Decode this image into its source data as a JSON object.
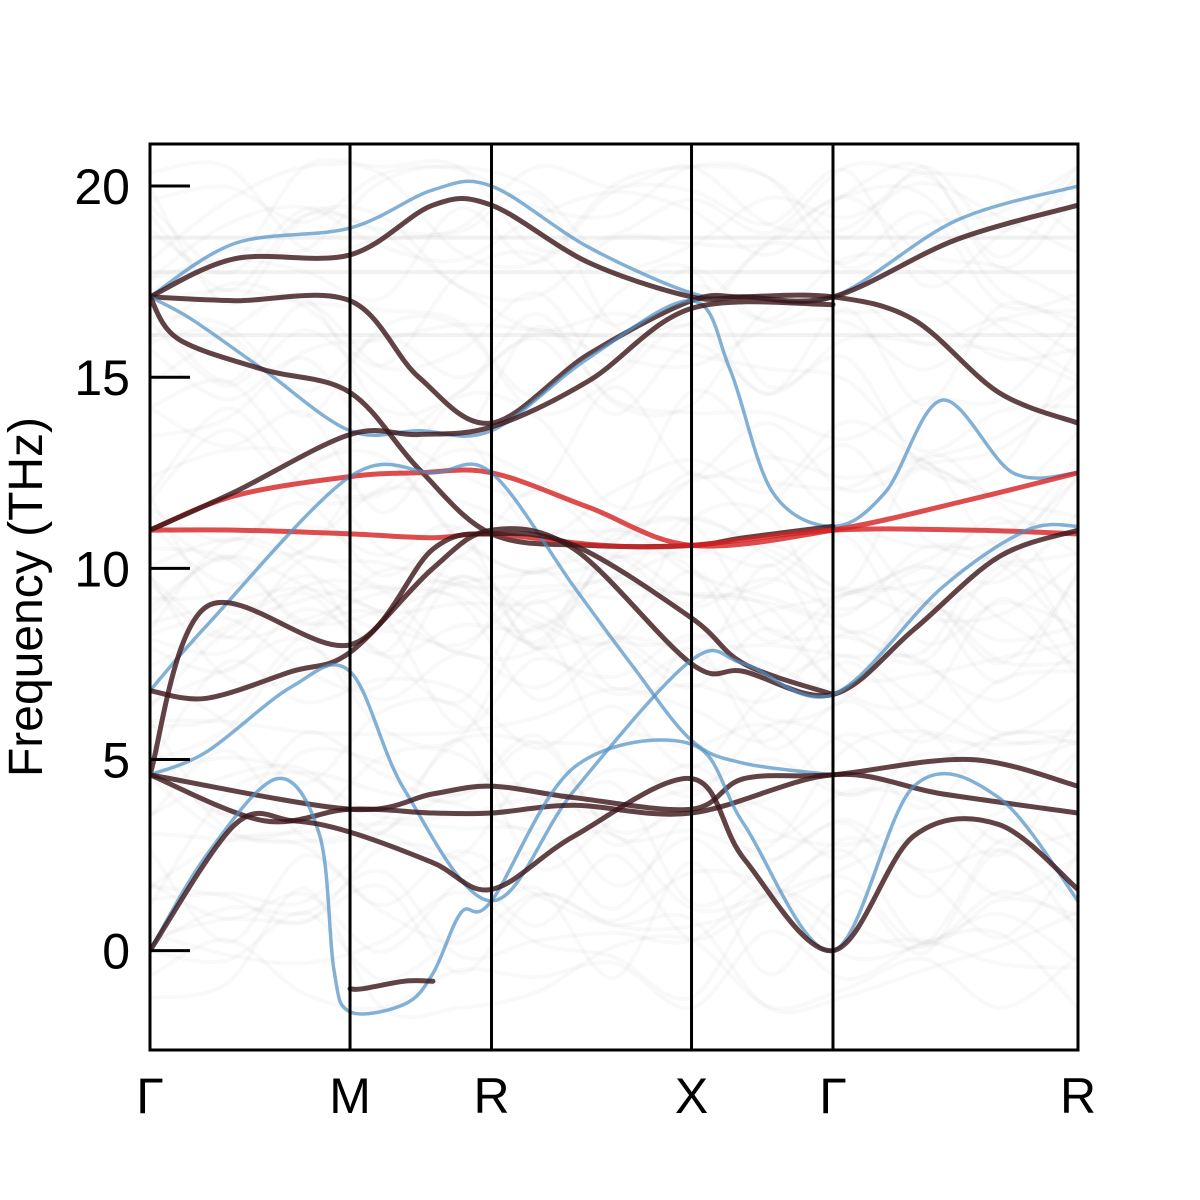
{
  "chart_data": {
    "type": "line",
    "title": "",
    "xlabel": "",
    "ylabel": "Frequency (THz)",
    "ylim": [
      -2.6,
      21.1
    ],
    "yticks": [
      0,
      5,
      10,
      15,
      20
    ],
    "ytick_labels": [
      "0",
      "5",
      "10",
      "15",
      "20"
    ],
    "kpath_positions": [
      0,
      0.707,
      1.207,
      1.914,
      2.414,
      3.28
    ],
    "kpath_labels": [
      "Γ",
      "M",
      "R",
      "X",
      "Γ",
      "R"
    ],
    "grid": false,
    "colors": {
      "reference": "#4f90c4",
      "unfolded_dark": "#3a1418",
      "unfolded_red": "#d42020",
      "background": "#b0b0b0"
    },
    "series": [
      {
        "color": "#4f90c4",
        "role": "reference",
        "x": [
          0,
          0.3,
          0.707,
          1.0,
          1.207,
          1.55,
          1.914,
          2.1,
          2.414,
          2.85,
          3.28
        ],
        "y": [
          17.1,
          18.5,
          18.9,
          19.9,
          20.0,
          18.4,
          17.2,
          17.1,
          17.1,
          19.1,
          20.0
        ]
      },
      {
        "color": "#3a1418",
        "role": "unfolded",
        "x": [
          0,
          0.3,
          0.707,
          1.0,
          1.207,
          1.55,
          1.914,
          2.1,
          2.414,
          2.85,
          3.28
        ],
        "y": [
          17.1,
          18.1,
          18.2,
          19.5,
          19.5,
          18.0,
          17.1,
          17.1,
          17.1,
          18.6,
          19.5
        ]
      },
      {
        "color": "#3a1418",
        "role": "unfolded",
        "x": [
          0,
          0.3,
          0.707,
          0.95,
          1.207,
          1.55,
          1.914,
          2.1,
          2.414,
          2.7,
          3.0,
          3.28
        ],
        "y": [
          17.1,
          17.0,
          17.0,
          15.0,
          13.8,
          15.6,
          17.0,
          17.1,
          17.1,
          16.5,
          14.6,
          13.8
        ]
      },
      {
        "color": "#4f90c4",
        "role": "reference",
        "x": [
          0,
          0.15,
          0.4,
          0.707,
          0.95,
          1.207,
          1.55,
          1.914,
          2.05,
          2.2,
          2.414,
          2.6,
          2.8,
          3.05,
          3.28
        ],
        "y": [
          17.1,
          16.5,
          15.2,
          13.6,
          13.6,
          13.6,
          15.5,
          17.0,
          15.2,
          12.0,
          11.1,
          12.0,
          14.4,
          12.5,
          12.5
        ]
      },
      {
        "color": "#3a1418",
        "role": "unfolded",
        "x": [
          0,
          0.1,
          0.4,
          0.707,
          0.95,
          1.207,
          1.55,
          1.914,
          2.1,
          2.414
        ],
        "y": [
          17.1,
          16.0,
          15.2,
          14.6,
          12.6,
          10.9,
          10.6,
          10.6,
          10.8,
          11.1
        ]
      },
      {
        "color": "#d42020",
        "role": "unfolded",
        "x": [
          0,
          0.3,
          0.707,
          1.0,
          1.207,
          1.6,
          1.914,
          2.414,
          2.9,
          3.28
        ],
        "y": [
          11.0,
          11.0,
          10.9,
          10.8,
          10.9,
          10.6,
          10.6,
          11.0,
          11.0,
          10.9
        ]
      },
      {
        "color": "#d42020",
        "role": "unfolded",
        "x": [
          0,
          0.3,
          0.707,
          0.95,
          1.207,
          1.55,
          1.914,
          2.414,
          2.9,
          3.28
        ],
        "y": [
          11.0,
          11.9,
          12.4,
          12.5,
          12.5,
          11.6,
          10.6,
          11.0,
          11.8,
          12.5
        ]
      },
      {
        "color": "#3a1418",
        "role": "unfolded",
        "x": [
          0,
          0.3,
          0.707,
          0.95,
          1.207,
          1.55,
          1.914,
          2.414
        ],
        "y": [
          11.0,
          12.0,
          13.5,
          13.5,
          13.7,
          14.9,
          16.8,
          16.9
        ]
      },
      {
        "color": "#4f90c4",
        "role": "reference",
        "x": [
          0,
          0.2,
          0.707,
          1.0,
          1.207,
          1.5,
          1.7,
          1.914,
          2.1,
          2.414
        ],
        "y": [
          6.8,
          8.5,
          12.4,
          12.5,
          12.5,
          9.5,
          7.5,
          5.5,
          4.9,
          4.6
        ]
      },
      {
        "color": "#3a1418",
        "role": "unfolded",
        "x": [
          0,
          0.2,
          0.707,
          1.0,
          1.207,
          1.5,
          1.914,
          2.1,
          2.414
        ],
        "y": [
          4.6,
          9.0,
          8.0,
          10.5,
          10.9,
          10.6,
          8.7,
          7.5,
          6.7
        ]
      },
      {
        "color": "#3a1418",
        "role": "unfolded",
        "x": [
          0,
          0.2,
          0.5,
          0.707,
          1.0,
          1.207,
          1.5,
          1.914,
          2.1,
          2.414,
          2.7,
          3.0,
          3.28
        ],
        "y": [
          6.8,
          6.6,
          7.3,
          7.8,
          10.0,
          11.0,
          10.5,
          7.5,
          7.3,
          6.7,
          8.4,
          10.3,
          11.0
        ]
      },
      {
        "color": "#4f90c4",
        "role": "reference",
        "x": [
          0,
          0.2,
          0.5,
          0.707,
          0.9,
          1.207,
          1.5,
          1.914,
          2.1,
          2.414,
          2.8,
          3.1,
          3.28
        ],
        "y": [
          4.6,
          5.2,
          6.9,
          7.3,
          4.2,
          1.3,
          4.2,
          7.6,
          7.5,
          6.7,
          9.5,
          11.0,
          11.1
        ]
      },
      {
        "color": "#3a1418",
        "role": "unfolded",
        "x": [
          0,
          0.707,
          1.0,
          1.207,
          1.5,
          1.914,
          2.1,
          2.414,
          2.9,
          3.28
        ],
        "y": [
          4.6,
          3.7,
          4.1,
          4.3,
          4.0,
          3.7,
          4.5,
          4.6,
          5.0,
          4.3
        ]
      },
      {
        "color": "#3a1418",
        "role": "unfolded",
        "x": [
          0,
          0.4,
          0.707,
          1.0,
          1.207,
          1.5,
          1.914,
          2.414,
          2.8,
          3.28
        ],
        "y": [
          4.6,
          3.4,
          3.7,
          3.6,
          3.6,
          3.8,
          3.6,
          4.6,
          4.1,
          3.6
        ]
      },
      {
        "color": "#4f90c4",
        "role": "reference",
        "x": [
          0,
          0.2,
          0.45,
          0.6,
          0.65,
          0.707,
          0.9,
          1.0,
          1.1,
          1.207,
          1.5,
          1.914,
          2.1,
          2.414,
          2.7,
          3.0,
          3.28
        ],
        "y": [
          0,
          2.5,
          4.5,
          3.0,
          -0.5,
          -1.6,
          -1.4,
          -0.6,
          1.0,
          1.3,
          4.8,
          5.4,
          3.3,
          0,
          4.3,
          4.0,
          1.3
        ]
      },
      {
        "color": "#3a1418",
        "role": "unfolded",
        "x": [
          0,
          0.3,
          0.5,
          0.707,
          1.0,
          1.207,
          1.5,
          1.914,
          2.1,
          2.414,
          2.7,
          3.0,
          3.28
        ],
        "y": [
          0,
          3.3,
          3.4,
          3.1,
          2.3,
          1.6,
          3.0,
          4.5,
          2.4,
          0,
          3.0,
          3.3,
          1.6
        ]
      },
      {
        "color": "#3a1418",
        "role": "unfolded",
        "x": [
          0.707,
          0.75,
          0.9,
          1.0
        ],
        "y": [
          -1.0,
          -1.0,
          -0.8,
          -0.8
        ]
      }
    ]
  }
}
